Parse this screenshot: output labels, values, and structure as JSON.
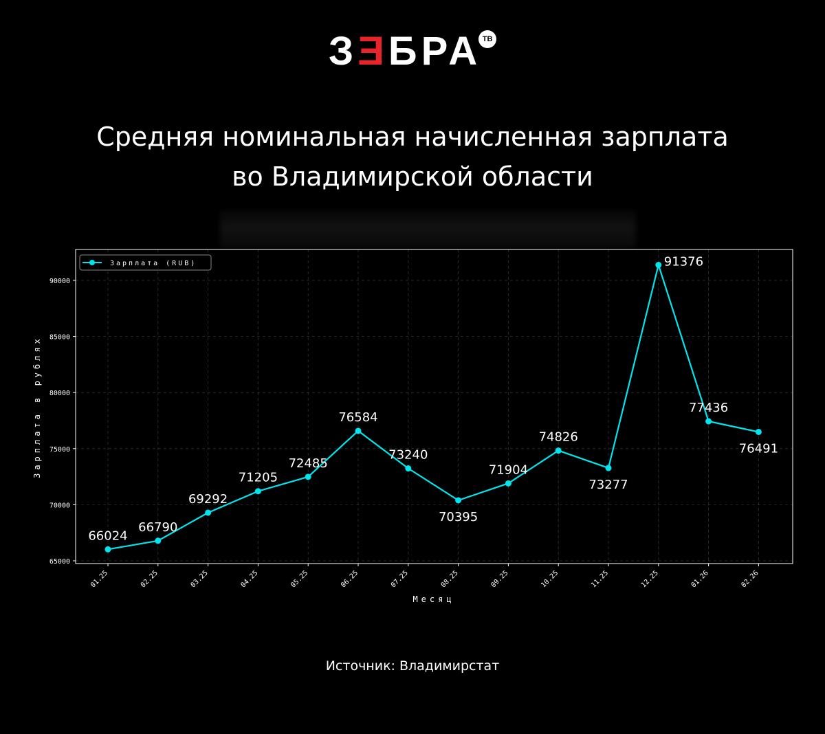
{
  "logo": {
    "text_left": "З",
    "text_e": "Ǝ",
    "text_right": "БРА",
    "badge": "ТВ",
    "accent": "#e8242b"
  },
  "title_line1": "Средняя номинальная начисленная зарплата",
  "title_line2": "во Владимирской области",
  "source": "Источник: Владимирстат",
  "colors": {
    "background": "#000000",
    "line": "#00e5ee",
    "text": "#ffffff",
    "grid": "#555555"
  },
  "chart_data": {
    "type": "line",
    "categories": [
      "01.25",
      "02.25",
      "03.25",
      "04.25",
      "05.25",
      "06.25",
      "07.25",
      "08.25",
      "09.25",
      "10.25",
      "11.25",
      "12.25",
      "01.26",
      "02.26"
    ],
    "series": [
      {
        "name": "Зарплата (RUB)",
        "values": [
          66024,
          66790,
          69292,
          71205,
          72485,
          76584,
          73240,
          70395,
          71904,
          74826,
          73277,
          91376,
          77436,
          76491
        ]
      }
    ],
    "xlabel": "Месяц",
    "ylabel": "Зарплата в рублях",
    "ylim": [
      65000,
      92500
    ],
    "yticks": [
      65000,
      70000,
      75000,
      80000,
      85000,
      90000
    ],
    "grid": true,
    "legend": "top-left"
  }
}
